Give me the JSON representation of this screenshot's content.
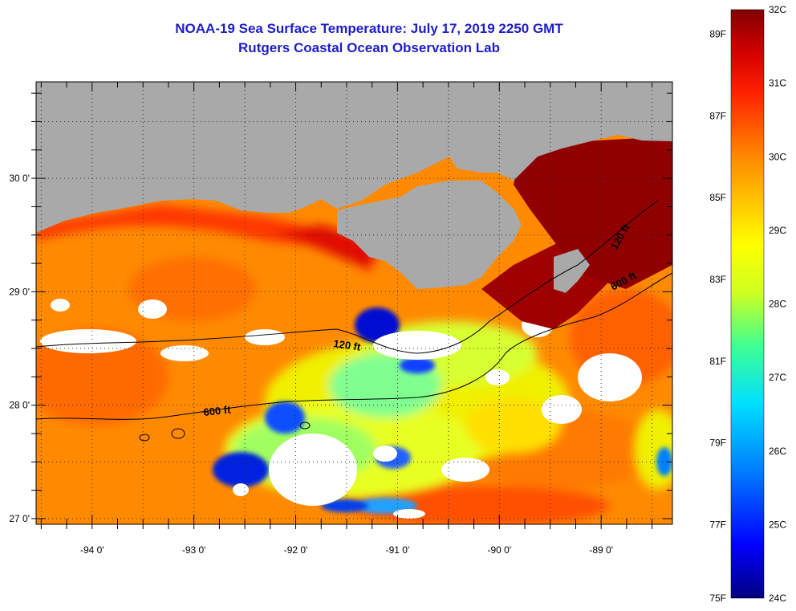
{
  "title": {
    "line1": "NOAA-19 Sea Surface Temperature:  July 17, 2019 2250 GMT",
    "line2": "Rutgers Coastal Ocean Observation Lab"
  },
  "map": {
    "lon_range": [
      -94.55,
      -88.3
    ],
    "lat_range": [
      26.95,
      30.85
    ],
    "x_ticks": [
      {
        "lon": -94,
        "label": "-94 0'"
      },
      {
        "lon": -93,
        "label": "-93 0'"
      },
      {
        "lon": -92,
        "label": "-92 0'"
      },
      {
        "lon": -91,
        "label": "-91 0'"
      },
      {
        "lon": -90,
        "label": "-90 0'"
      },
      {
        "lon": -89,
        "label": "-89 0'"
      }
    ],
    "y_ticks": [
      {
        "lat": 30,
        "label": "30 0'"
      },
      {
        "lat": 29,
        "label": "29 0'"
      },
      {
        "lat": 28,
        "label": "28 0'"
      },
      {
        "lat": 27,
        "label": "27 0'"
      }
    ],
    "contour_labels": [
      "120 ft",
      "600 ft",
      "120 ft",
      "600 ft"
    ],
    "land_color": "#a9a9a9",
    "cloud_color": "#ffffff"
  },
  "colorbar": {
    "range_c": [
      24,
      32
    ],
    "range_f": [
      75,
      89
    ],
    "celsius_labels": [
      "32C",
      "31C",
      "30C",
      "29C",
      "28C",
      "27C",
      "26C",
      "25C",
      "24C"
    ],
    "fahrenheit_labels": [
      "89F",
      "87F",
      "85F",
      "83F",
      "81F",
      "79F",
      "77F",
      "75F"
    ],
    "colors": [
      "#000080",
      "#0000ff",
      "#0080ff",
      "#00e0ff",
      "#40ff90",
      "#d0ff20",
      "#ffff00",
      "#ffc000",
      "#ff8000",
      "#ff2000",
      "#d00000",
      "#800000"
    ]
  }
}
